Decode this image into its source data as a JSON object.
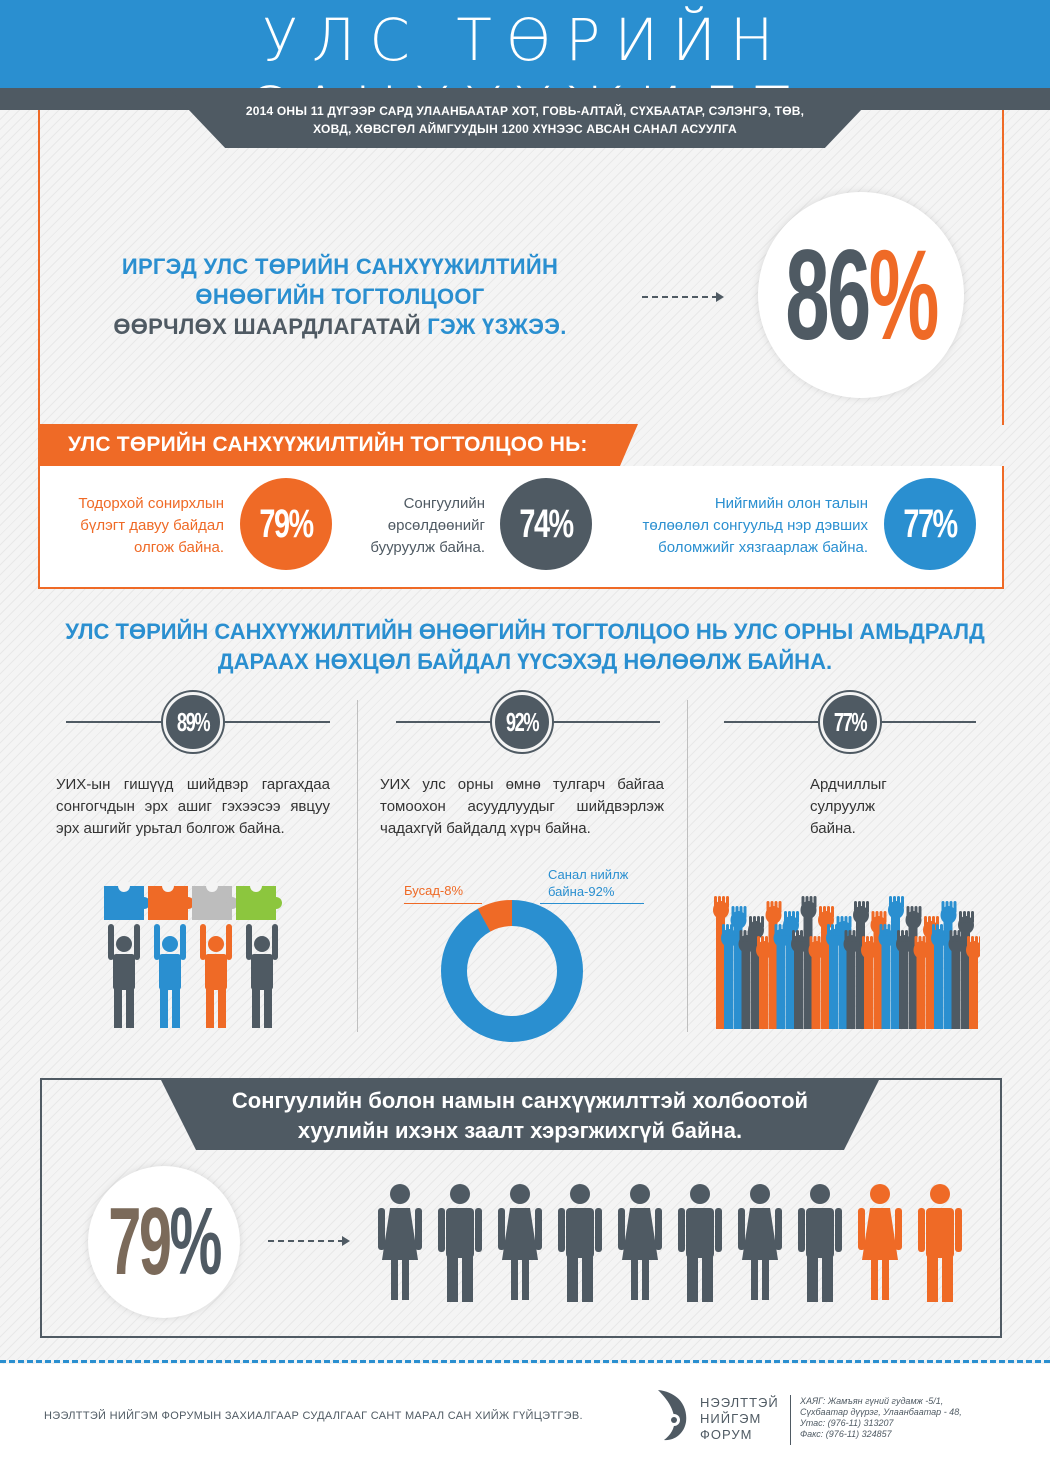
{
  "header": {
    "title": "УЛС ТӨРИЙН САНХҮҮЖИЛТ",
    "subtitle_line1": "2014 ОНЫ 11 ДҮГЭЭР САРД УЛААНБААТАР ХОТ, ГОВЬ-АЛТАЙ, СҮХБААТАР, СЭЛЭНГЭ, ТӨВ,",
    "subtitle_line2": "ХОВД, ХӨВСГӨЛ АЙМГУУДЫН 1200 ХҮНЭЭС АВСАН САНАЛ АСУУЛГА"
  },
  "main_stat": {
    "line1": "ИРГЭД УЛС ТӨРИЙН САНХҮҮЖИЛТИЙН",
    "line2": "ӨНӨӨГИЙН ТОГТОЛЦООГ",
    "line3_dark": "ӨӨРЧЛӨХ ШААРДЛАГАТАЙ",
    "line3_blue": "ГЭЖ ҮЗЖЭЭ.",
    "value": "86",
    "pct_sign": "%"
  },
  "system_section": {
    "title": "УЛС ТӨРИЙН САНХҮҮЖИЛТИЙН ТОГТОЛЦОО НЬ:",
    "stats": [
      {
        "text1": "Тодорхой сонирхлын",
        "text2": "бүлэгт давуу байдал",
        "text3": "олгож байна.",
        "value": "79%",
        "color": "#ef6a26"
      },
      {
        "text1": "Сонгуулийн",
        "text2": "өрсөлдөөнийг",
        "text3": "бууруулж байна.",
        "value": "74%",
        "color": "#4f5a63"
      },
      {
        "text1": "Нийгмийн олон талын",
        "text2": "төлөөлөл сонгуульд нэр дэвших",
        "text3": "боломжийг хязгаарлаж байна.",
        "value": "77%",
        "color": "#2a8fd0"
      }
    ]
  },
  "impact_section": {
    "title_line1": "УЛС ТӨРИЙН САНХҮҮЖИЛТИЙН ӨНӨӨГИЙН ТОГТОЛЦОО НЬ УЛС ОРНЫ АМЬДРАЛД",
    "title_line2": "ДАРААХ НӨХЦӨЛ БАЙДАЛ ҮҮСЭХЭД НӨЛӨӨЛЖ БАЙНА.",
    "columns": [
      {
        "value": "89%",
        "text": "УИХ-ын гишүүд шийдвэр гаргахдаа сонгогчдын эрх ашиг гэхээсээ явцуу эрх ашгийг урьтал болгож байна."
      },
      {
        "value": "92%",
        "text": "УИХ улс орны өмнө тулгарч байгаа томоохон асуудлуудыг шийдвэрлэж чадахгүй байдалд хүрч байна."
      },
      {
        "value": "77%",
        "text": "Ардчиллыг сулруулж байна."
      }
    ],
    "donut": {
      "other_label": "Бусад-8%",
      "agree_label_line1": "Санал нийлж",
      "agree_label_line2": "байна-92%",
      "agree_value": 92,
      "other_value": 8,
      "agree_color": "#2a8fd0",
      "other_color": "#ef6a26"
    },
    "puzzle_colors": [
      "#2a8fd0",
      "#ef6a26",
      "#bdbdbd",
      "#8cc63e"
    ]
  },
  "law_section": {
    "title_line1": "Сонгуулийн болон намын санхүүжилттэй холбоотой",
    "title_line2": "хуулийн ихэнх заалт хэрэгжихгүй байна.",
    "value": "79",
    "pct_sign": "%"
  },
  "footer": {
    "credit": "НЭЭЛТТЭЙ НИЙГЭМ ФОРУМЫН ЗАХИАЛГААР СУДАЛГААГ САНТ МАРАЛ САН ХИЙЖ ГҮЙЦЭТГЭВ.",
    "logo_line1": "НЭЭЛТТЭЙ",
    "logo_line2": "НИЙГЭМ",
    "logo_line3": "ФОРУМ",
    "address1": "ХАЯГ: Жамъян гүний гудамж -5/1,",
    "address2": "Сүхбаатар дүүрэг, Улаанбаатар - 48,",
    "phone": "Утас: (976-11) 313207",
    "fax": "Факс: (976-11) 324857"
  }
}
